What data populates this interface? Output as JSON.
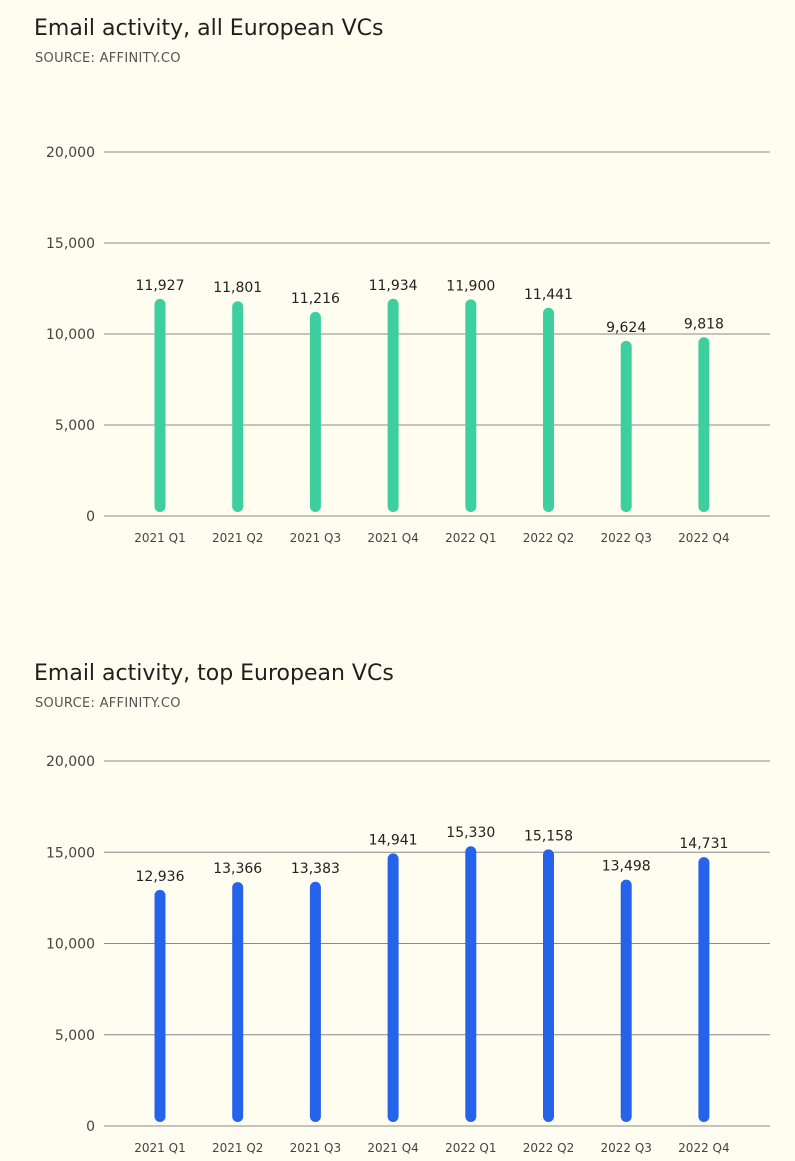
{
  "chart_data": [
    {
      "type": "bar",
      "title": "Email activity, all European VCs",
      "subtitle": "SOURCE: AFFINITY.CO",
      "categories": [
        "2021 Q1",
        "2021 Q2",
        "2021 Q3",
        "2021 Q4",
        "2022 Q1",
        "2022 Q2",
        "2022 Q3",
        "2022 Q4"
      ],
      "values": [
        11927,
        11801,
        11216,
        11934,
        11900,
        11441,
        9624,
        9818
      ],
      "value_labels": [
        "11,927",
        "11,801",
        "11,216",
        "11,934",
        "11,900",
        "11,441",
        "9,624",
        "9,818"
      ],
      "yticks": [
        "0",
        "5,000",
        "10,000",
        "15,000",
        "20,000"
      ],
      "ylim": [
        0,
        20000
      ],
      "color": "#3ecf9e",
      "grid": true
    },
    {
      "type": "bar",
      "title": "Email activity, top European VCs",
      "subtitle": "SOURCE: AFFINITY.CO",
      "categories": [
        "2021 Q1",
        "2021 Q2",
        "2021 Q3",
        "2021 Q4",
        "2022 Q1",
        "2022 Q2",
        "2022 Q3",
        "2022 Q4"
      ],
      "values": [
        12936,
        13366,
        13383,
        14941,
        15330,
        15158,
        13498,
        14731
      ],
      "value_labels": [
        "12,936",
        "13,366",
        "13,383",
        "14,941",
        "15,330",
        "15,158",
        "13,498",
        "14,731"
      ],
      "yticks": [
        "0",
        "5,000",
        "10,000",
        "15,000",
        "20,000"
      ],
      "ylim": [
        0,
        20000
      ],
      "color": "#2563eb",
      "grid": true
    }
  ]
}
